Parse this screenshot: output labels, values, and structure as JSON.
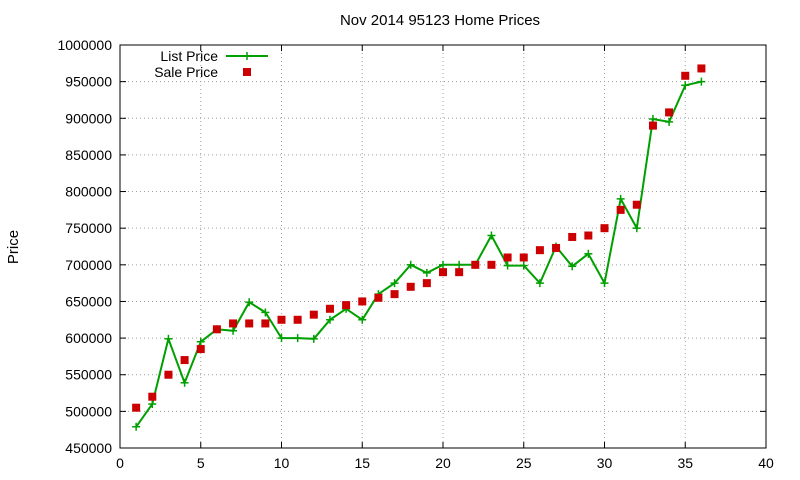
{
  "chart_data": {
    "type": "line",
    "title": "Nov 2014 95123 Home Prices",
    "xlabel": "",
    "ylabel": "Price",
    "xlim": [
      0,
      40
    ],
    "ylim": [
      450000,
      1000000
    ],
    "x_ticks": [
      0,
      5,
      10,
      15,
      20,
      25,
      30,
      35,
      40
    ],
    "y_ticks": [
      450000,
      500000,
      550000,
      600000,
      650000,
      700000,
      750000,
      800000,
      850000,
      900000,
      950000,
      1000000
    ],
    "grid": true,
    "legend_position": "top-left",
    "series": [
      {
        "name": "List Price",
        "style": "line-plus",
        "color": "#00a000",
        "points": [
          [
            1,
            479000
          ],
          [
            2,
            510000
          ],
          [
            3,
            599000
          ],
          [
            4,
            539000
          ],
          [
            5,
            595000
          ],
          [
            6,
            612000
          ],
          [
            7,
            610000
          ],
          [
            8,
            649000
          ],
          [
            9,
            635000
          ],
          [
            10,
            600000
          ],
          [
            11,
            600000
          ],
          [
            12,
            599000
          ],
          [
            13,
            625000
          ],
          [
            14,
            640000
          ],
          [
            15,
            625000
          ],
          [
            16,
            660000
          ],
          [
            17,
            675000
          ],
          [
            18,
            700000
          ],
          [
            19,
            689000
          ],
          [
            20,
            700000
          ],
          [
            21,
            700000
          ],
          [
            22,
            700000
          ],
          [
            23,
            740000
          ],
          [
            24,
            699000
          ],
          [
            25,
            699000
          ],
          [
            26,
            675000
          ],
          [
            27,
            725000
          ],
          [
            28,
            698000
          ],
          [
            29,
            715000
          ],
          [
            30,
            675000
          ],
          [
            31,
            790000
          ],
          [
            32,
            750000
          ],
          [
            33,
            899000
          ],
          [
            34,
            895000
          ],
          [
            35,
            945000
          ],
          [
            36,
            950000
          ]
        ]
      },
      {
        "name": "Sale Price",
        "style": "square-marker",
        "color": "#cc0000",
        "points": [
          [
            1,
            505000
          ],
          [
            2,
            520000
          ],
          [
            3,
            550000
          ],
          [
            4,
            570000
          ],
          [
            5,
            585000
          ],
          [
            6,
            612000
          ],
          [
            7,
            620000
          ],
          [
            8,
            620000
          ],
          [
            9,
            620000
          ],
          [
            10,
            625000
          ],
          [
            11,
            625000
          ],
          [
            12,
            632000
          ],
          [
            13,
            640000
          ],
          [
            14,
            645000
          ],
          [
            15,
            650000
          ],
          [
            16,
            655000
          ],
          [
            17,
            660000
          ],
          [
            18,
            670000
          ],
          [
            19,
            675000
          ],
          [
            20,
            690000
          ],
          [
            21,
            690000
          ],
          [
            22,
            700000
          ],
          [
            23,
            700000
          ],
          [
            24,
            710000
          ],
          [
            25,
            710000
          ],
          [
            26,
            720000
          ],
          [
            27,
            723000
          ],
          [
            28,
            738000
          ],
          [
            29,
            740000
          ],
          [
            30,
            750000
          ],
          [
            31,
            775000
          ],
          [
            32,
            782000
          ],
          [
            33,
            890000
          ],
          [
            34,
            908000
          ],
          [
            35,
            958000
          ],
          [
            36,
            968000
          ]
        ]
      }
    ]
  }
}
